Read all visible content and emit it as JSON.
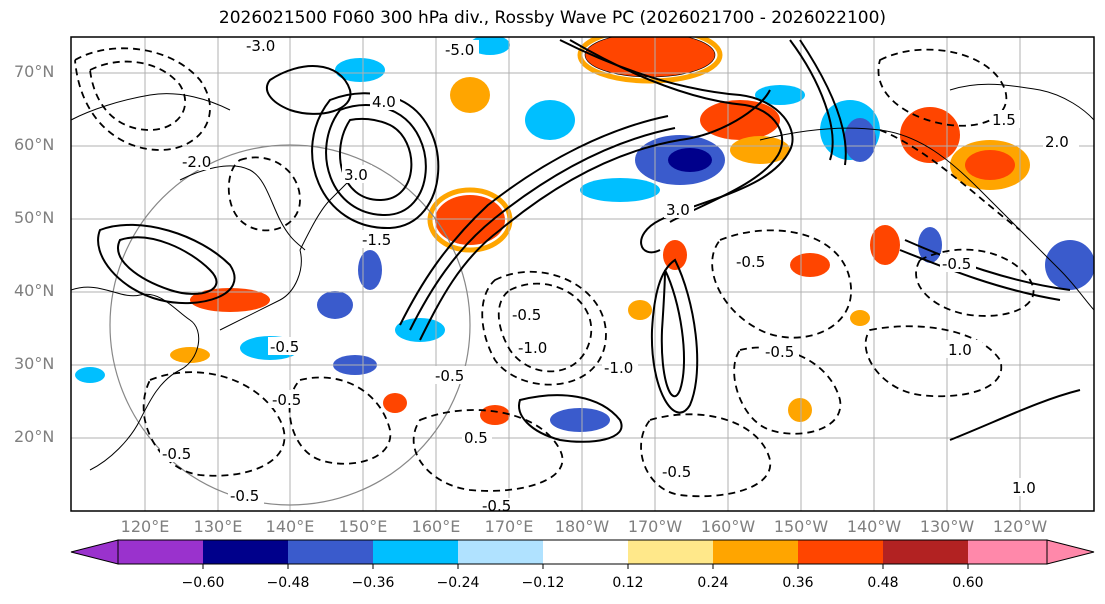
{
  "title": "2026021500 F060 300 hPa div., Rossby Wave PC (2026021700 - 2026022100)",
  "latitude_labels": [
    "70°N",
    "60°N",
    "50°N",
    "40°N",
    "30°N",
    "20°N"
  ],
  "longitude_labels": [
    "120°E",
    "130°E",
    "140°E",
    "150°E",
    "160°E",
    "170°E",
    "180°W",
    "170°W",
    "160°W",
    "150°W",
    "140°W",
    "130°W",
    "120°W"
  ],
  "colorbar": {
    "tick_labels": [
      "−0.60",
      "−0.48",
      "−0.36",
      "−0.24",
      "−0.12",
      "0.12",
      "0.24",
      "0.36",
      "0.48",
      "0.60"
    ],
    "colors": [
      "#9a32cd",
      "#00008b",
      "#3a5bcc",
      "#00bfff",
      "#b0e2ff",
      "#ffffff",
      "#ffe88a",
      "#ffa500",
      "#ff4500",
      "#b22222",
      "#ff88aa"
    ]
  },
  "contour_labels": [
    "-3.0",
    "-5.0",
    "2.0",
    "-2.0",
    "4.0",
    "3.0",
    "-1.5",
    "-0.5",
    "0.5",
    "1.5",
    "-1.0",
    "1.0"
  ]
}
